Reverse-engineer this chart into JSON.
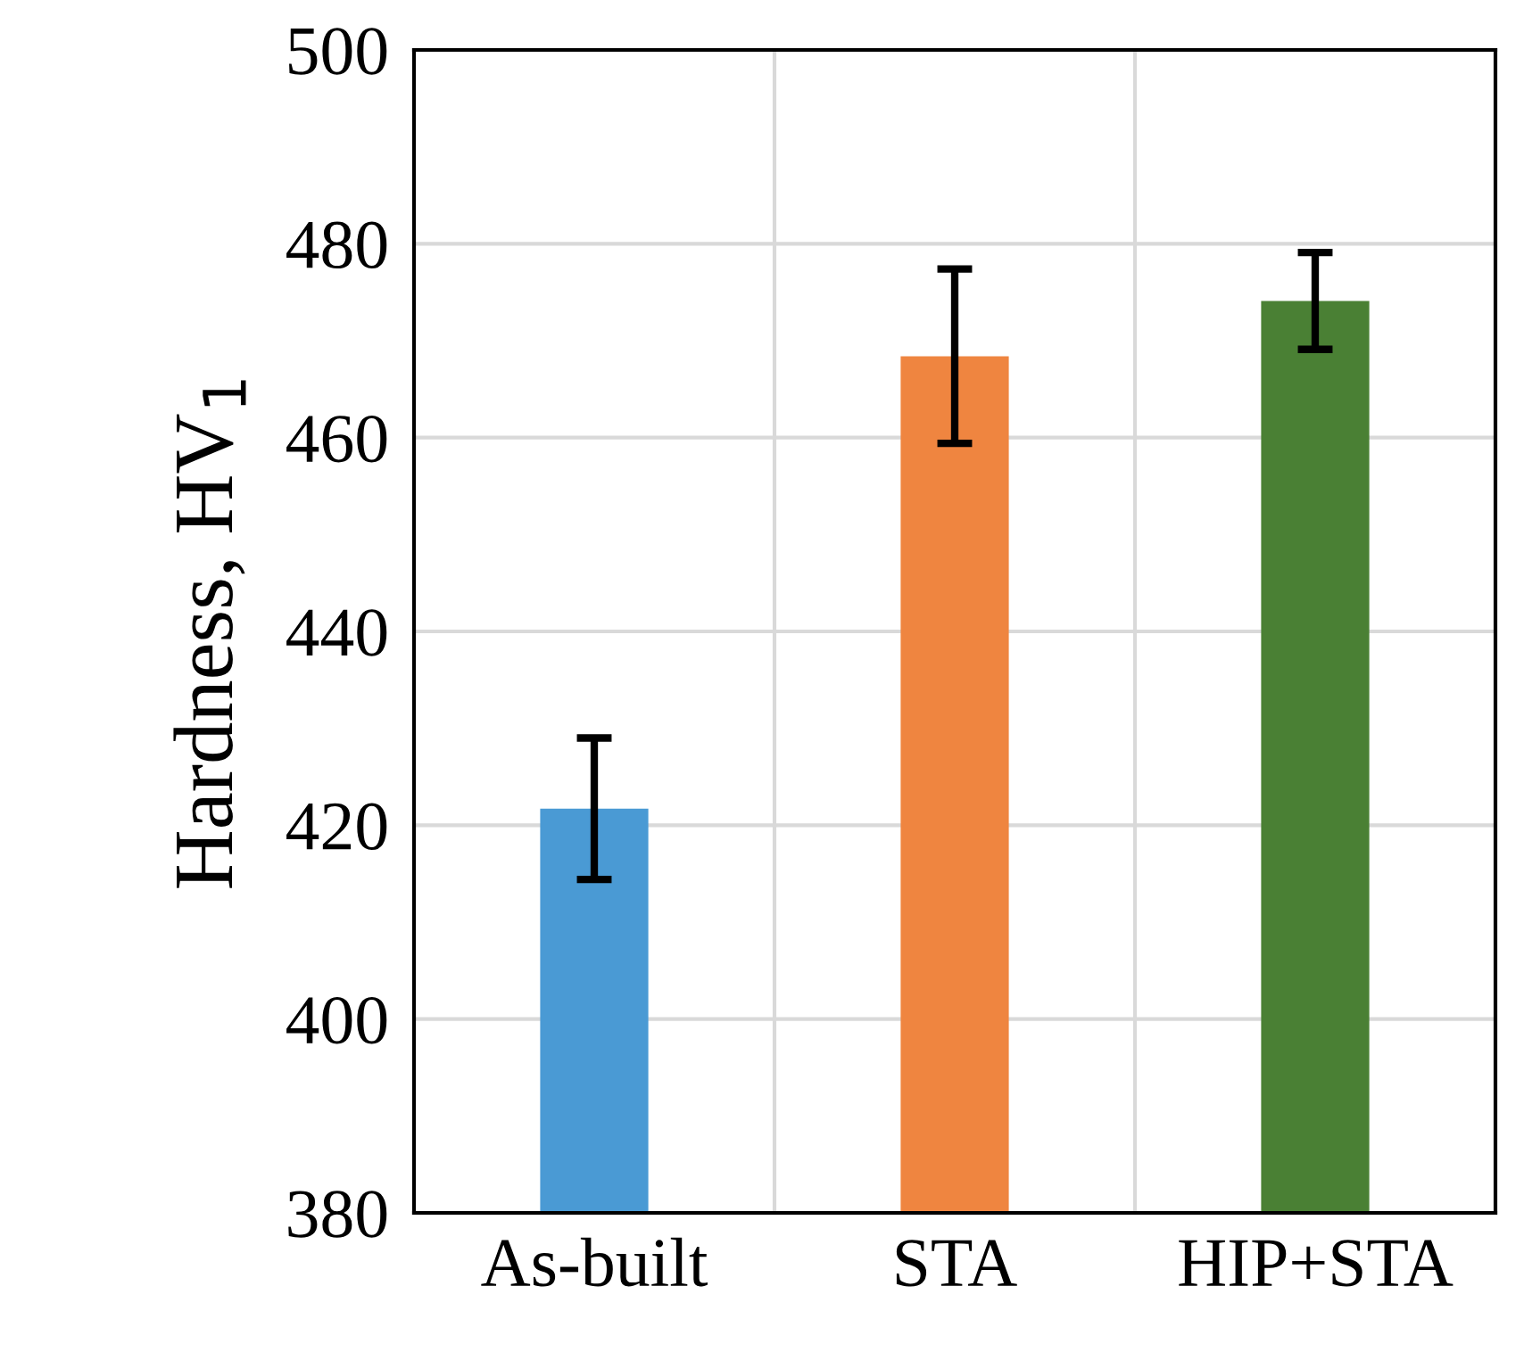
{
  "chart_data": {
    "type": "bar",
    "ylabel": "Hardness, HV$_{1}$",
    "categories": [
      "As-built",
      "STA",
      "HIP+STA"
    ],
    "values": [
      421.7,
      468.4,
      474.1
    ],
    "errors": [
      7.3,
      9.0,
      5.0
    ],
    "colors": [
      "#4a9ad4",
      "#ef8540",
      "#4a8034"
    ],
    "ylim": [
      380,
      500
    ],
    "yticks": [
      380,
      400,
      420,
      440,
      460,
      480,
      500
    ],
    "grid": true
  }
}
